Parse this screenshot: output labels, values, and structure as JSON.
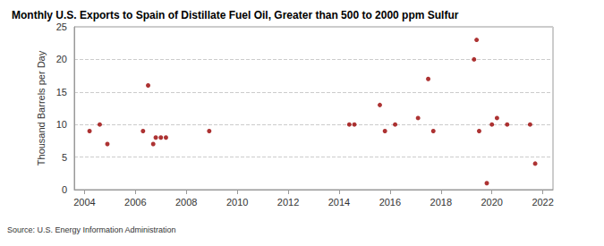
{
  "chart_data": {
    "type": "scatter",
    "title": "Monthly U.S. Exports to Spain of Distillate Fuel Oil, Greater than 500 to 2000 ppm Sulfur",
    "ylabel": "Thousand Barrels per Day",
    "source": "Source: U.S. Energy Information Administration",
    "x": [
      2004.2,
      2004.6,
      2004.9,
      2006.3,
      2006.5,
      2006.7,
      2006.8,
      2007.0,
      2007.2,
      2008.9,
      2014.4,
      2014.6,
      2015.6,
      2015.8,
      2016.2,
      2017.1,
      2017.5,
      2017.7,
      2019.3,
      2019.4,
      2019.5,
      2019.8,
      2020.0,
      2020.2,
      2020.6,
      2021.5,
      2021.7
    ],
    "values": [
      9,
      10,
      7,
      9,
      16,
      7,
      8,
      8,
      8,
      9,
      10,
      10,
      13,
      9,
      10,
      11,
      17,
      9,
      20,
      23,
      9,
      1,
      10,
      11,
      10,
      10,
      4
    ],
    "color": "#990000",
    "marker": "circle",
    "xlim": [
      2003.6,
      2022.4
    ],
    "xticks": [
      2004,
      2006,
      2008,
      2010,
      2012,
      2014,
      2016,
      2018,
      2020,
      2022
    ],
    "ylim": [
      0,
      25
    ],
    "yticks": [
      0,
      5,
      10,
      15,
      20,
      25
    ],
    "grid": true
  }
}
